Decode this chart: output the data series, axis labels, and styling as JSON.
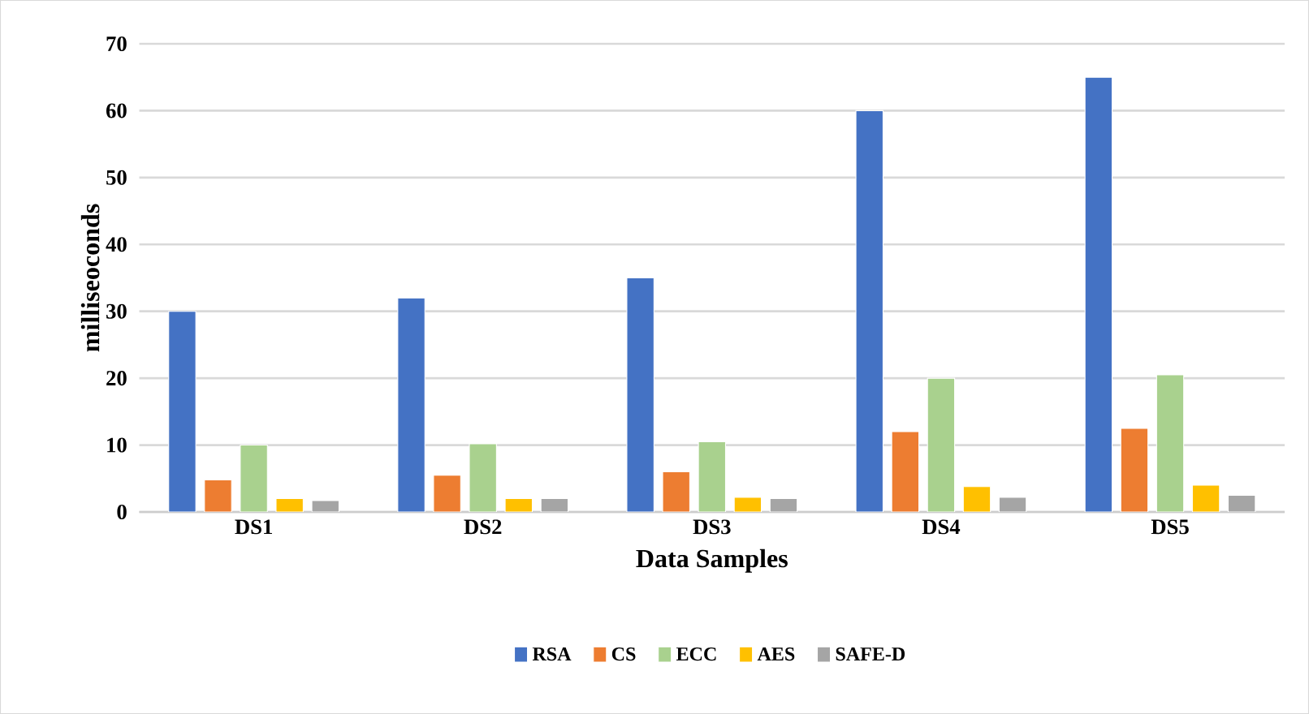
{
  "chart_data": {
    "type": "bar",
    "xlabel": "Data Samples",
    "ylabel": "milliseoconds",
    "categories": [
      "DS1",
      "DS2",
      "DS3",
      "DS4",
      "DS5"
    ],
    "series": [
      {
        "name": "RSA",
        "color": "#4472c4",
        "values": [
          30,
          32,
          35,
          60,
          65
        ]
      },
      {
        "name": "CS",
        "color": "#ed7d31",
        "values": [
          4.8,
          5.5,
          6,
          12,
          12.5
        ]
      },
      {
        "name": "ECC",
        "color": "#a9d18e",
        "values": [
          10,
          10.2,
          10.5,
          20,
          20.5
        ]
      },
      {
        "name": "AES",
        "color": "#ffc000",
        "values": [
          2,
          2,
          2.2,
          3.8,
          4
        ]
      },
      {
        "name": "SAFE-D",
        "color": "#a5a5a5",
        "values": [
          1.7,
          2,
          2,
          2.2,
          2.5
        ]
      }
    ],
    "ylim": [
      0,
      70
    ],
    "yticks": [
      0,
      10,
      20,
      30,
      40,
      50,
      60,
      70
    ],
    "grid": "y",
    "legend": "bottom"
  }
}
